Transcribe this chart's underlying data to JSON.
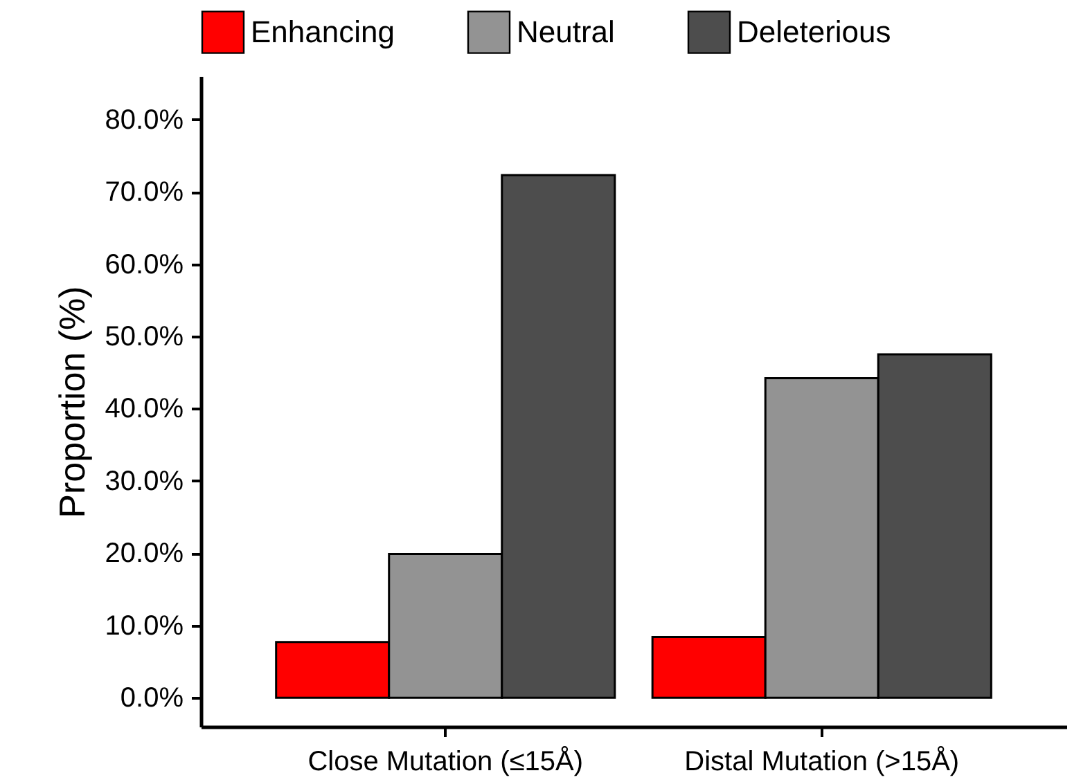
{
  "chart_data": {
    "type": "bar",
    "ylabel": "Proportion (%)",
    "categories": [
      "Close Mutation (≤15Å)",
      "Distal Mutation (>15Å)"
    ],
    "series": [
      {
        "name": "Enhancing",
        "color": "#ff0000",
        "values": [
          7.7,
          8.4
        ]
      },
      {
        "name": "Neutral",
        "color": "#939393",
        "values": [
          19.9,
          44.2
        ]
      },
      {
        "name": "Deleterious",
        "color": "#4d4d4d",
        "values": [
          72.3,
          47.5
        ]
      }
    ],
    "ylim": [
      -4,
      86
    ],
    "yticks": [
      {
        "value": 0,
        "label": "0.0%"
      },
      {
        "value": 10,
        "label": "10.0%"
      },
      {
        "value": 20,
        "label": "20.0%"
      },
      {
        "value": 30,
        "label": "30.0%"
      },
      {
        "value": 40,
        "label": "40.0%"
      },
      {
        "value": 50,
        "label": "50.0%"
      },
      {
        "value": 60,
        "label": "60.0%"
      },
      {
        "value": 70,
        "label": "70.0%"
      },
      {
        "value": 80,
        "label": "80.0%"
      }
    ],
    "grid": false,
    "legend": "top"
  }
}
